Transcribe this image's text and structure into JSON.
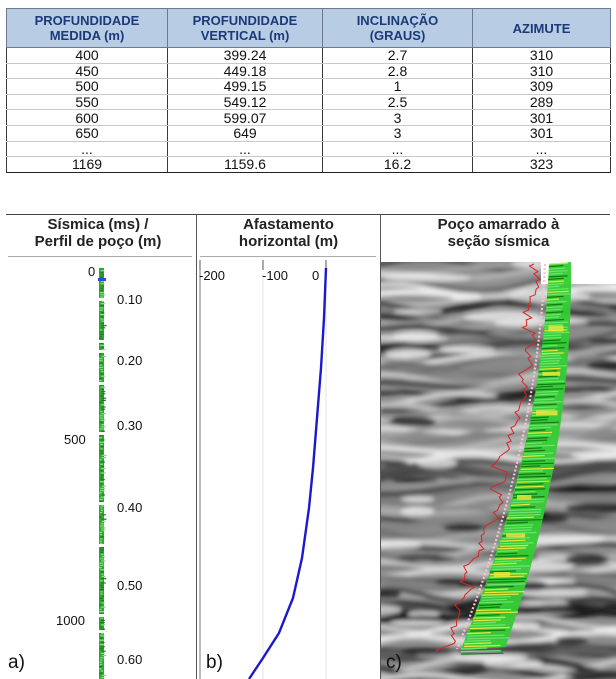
{
  "table": {
    "headers": [
      [
        "PROFUNDIDADE",
        "MEDIDA (m)"
      ],
      [
        "PROFUNDIDADE",
        "VERTICAL (m)"
      ],
      [
        "INCLINAÇÃO",
        "(GRAUS)"
      ],
      [
        "AZIMUTE"
      ]
    ],
    "rows": [
      [
        "400",
        "399.24",
        "2.7",
        "310"
      ],
      [
        "450",
        "449.18",
        "2.8",
        "310"
      ],
      [
        "500",
        "499.15",
        "1",
        "309"
      ],
      [
        "550",
        "549.12",
        "2.5",
        "289"
      ],
      [
        "600",
        "599.07",
        "3",
        "301"
      ],
      [
        "650",
        "649",
        "3",
        "301"
      ],
      [
        "...",
        "...",
        "...",
        "..."
      ],
      [
        "1169",
        "1159.6",
        "16.2",
        "323"
      ]
    ],
    "header_bg": "#b8cde4",
    "header_text_color": "#1a3a7a"
  },
  "panels": {
    "a": {
      "title_line1": "Sísmica (ms) /",
      "title_line2": "Perfil de poço (m)",
      "letter": "a)",
      "depth_labels": [
        "0",
        "500",
        "1000"
      ],
      "time_labels": [
        "0.10",
        "0.20",
        "0.30",
        "0.40",
        "0.50",
        "0.60"
      ],
      "log_color": "#2fa82f"
    },
    "b": {
      "title_line1": "Afastamento",
      "title_line2": "horizontal (m)",
      "letter": "b)",
      "x_ticks": [
        "-200",
        "-100",
        "0"
      ],
      "curve_color": "#1a1acc"
    },
    "c": {
      "title_line1": "Poço amarrado à",
      "title_line2": "seção sísmica",
      "letter": "c)",
      "log_colors": {
        "green": "#33cc33",
        "yellow": "#e8e83a",
        "red": "#dd2222",
        "trajectory": "#f2c8c8"
      }
    }
  }
}
